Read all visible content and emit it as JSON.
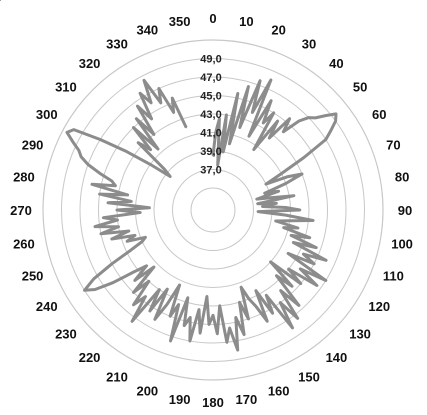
{
  "chart_data": {
    "type": "radar",
    "angle_unit": "degrees",
    "angle_ticks": [
      "0",
      "10",
      "20",
      "30",
      "40",
      "50",
      "60",
      "70",
      "80",
      "90",
      "100",
      "110",
      "120",
      "130",
      "140",
      "150",
      "160",
      "170",
      "180",
      "190",
      "200",
      "210",
      "220",
      "230",
      "240",
      "250",
      "260",
      "270",
      "280",
      "290",
      "300",
      "310",
      "320",
      "330",
      "340",
      "350"
    ],
    "radial_ticks": [
      "37,0",
      "39,0",
      "41,0",
      "43,0",
      "45,0",
      "47,0",
      "49,0"
    ],
    "rlim": [
      35,
      51
    ],
    "grid": true,
    "series_color": "#8c8c8c",
    "grid_color": "#c8c8c8",
    "series": [
      {
        "angle": [
          0,
          2,
          4,
          6,
          8,
          10,
          12,
          14,
          16,
          18,
          20,
          22,
          24,
          26,
          28,
          30,
          32,
          34,
          36,
          38,
          40,
          42,
          44,
          46,
          48,
          50,
          52,
          54,
          56,
          58,
          60,
          62,
          64,
          66,
          68,
          70,
          72,
          74,
          76,
          78,
          80,
          82,
          84,
          86,
          88,
          90,
          92,
          94,
          96,
          98,
          100,
          102,
          104,
          106,
          108,
          110,
          112,
          114,
          116,
          118,
          120,
          122,
          124,
          126,
          128,
          130,
          132,
          134,
          136,
          138,
          140,
          142,
          144,
          146,
          148,
          150,
          152,
          154,
          156,
          158,
          160,
          162,
          164,
          166,
          168,
          170,
          172,
          174,
          176,
          178,
          180,
          182,
          184,
          186,
          188,
          190,
          192,
          194,
          196,
          198,
          200,
          202,
          204,
          206,
          208,
          210,
          212,
          214,
          216,
          218,
          220,
          222,
          224,
          226,
          228,
          230,
          232,
          234,
          236,
          238,
          240,
          242,
          244,
          246,
          248,
          250,
          252,
          254,
          256,
          258,
          260,
          262,
          264,
          266,
          268,
          270,
          272,
          274,
          276,
          278,
          280,
          282,
          284,
          286,
          288,
          290,
          292,
          294,
          296,
          298,
          300,
          302,
          304,
          306,
          308,
          310,
          312,
          314,
          316,
          318,
          320,
          322,
          324,
          326,
          328,
          330,
          332,
          334,
          336,
          338,
          340,
          342,
          344,
          346,
          348,
          350,
          352,
          354,
          356,
          358
        ],
        "values": [
          38.5,
          41.0,
          42.5,
          37.5,
          43.0,
          39.0,
          45.5,
          40.0,
          46.5,
          42.0,
          47.5,
          44.0,
          48.0,
          41.5,
          46.0,
          43.5,
          45.0,
          40.5,
          44.5,
          42.5,
          45.5,
          44.0,
          46.0,
          47.0,
          47.5,
          48.5,
          49.5,
          49.0,
          48.0,
          47.0,
          44.0,
          41.0,
          39.0,
          41.5,
          43.0,
          41.0,
          38.5,
          40.0,
          37.5,
          39.0,
          41.5,
          37.5,
          39.5,
          38.0,
          40.5,
          42.0,
          37.5,
          40.5,
          43.5,
          41.0,
          39.5,
          42.0,
          40.5,
          43.5,
          41.5,
          44.5,
          42.0,
          46.0,
          43.5,
          45.0,
          42.0,
          47.0,
          44.0,
          46.5,
          43.0,
          45.0,
          41.0,
          44.5,
          42.5,
          46.5,
          44.0,
          47.5,
          45.0,
          48.0,
          43.5,
          45.5,
          42.5,
          46.0,
          44.0,
          43.0,
          41.5,
          45.0,
          43.0,
          46.5,
          44.5,
          48.0,
          45.5,
          47.0,
          43.0,
          46.0,
          44.0,
          45.0,
          42.0,
          46.0,
          43.5,
          47.0,
          44.5,
          45.5,
          42.5,
          47.5,
          43.5,
          45.0,
          41.5,
          44.0,
          46.0,
          42.5,
          45.5,
          43.0,
          47.5,
          44.5,
          46.0,
          43.0,
          45.0,
          41.5,
          44.0,
          42.0,
          43.5,
          46.0,
          48.0,
          49.0,
          47.5,
          45.0,
          42.5,
          41.0,
          40.5,
          42.5,
          41.5,
          44.0,
          42.0,
          45.0,
          43.0,
          45.5,
          43.0,
          44.5,
          40.5,
          43.0,
          39.5,
          44.0,
          41.5,
          45.0,
          42.0,
          46.0,
          43.5,
          44.0,
          45.5,
          47.0,
          48.0,
          48.5,
          49.5,
          50.5,
          50.0,
          47.0,
          44.0,
          41.0,
          38.5,
          39.5,
          43.5,
          42.0,
          45.0,
          41.5,
          45.5,
          43.0,
          46.5,
          44.5,
          47.5,
          46.0,
          48.5,
          45.5,
          47.0,
          44.0,
          45.5,
          42.0
        ]
      }
    ]
  }
}
